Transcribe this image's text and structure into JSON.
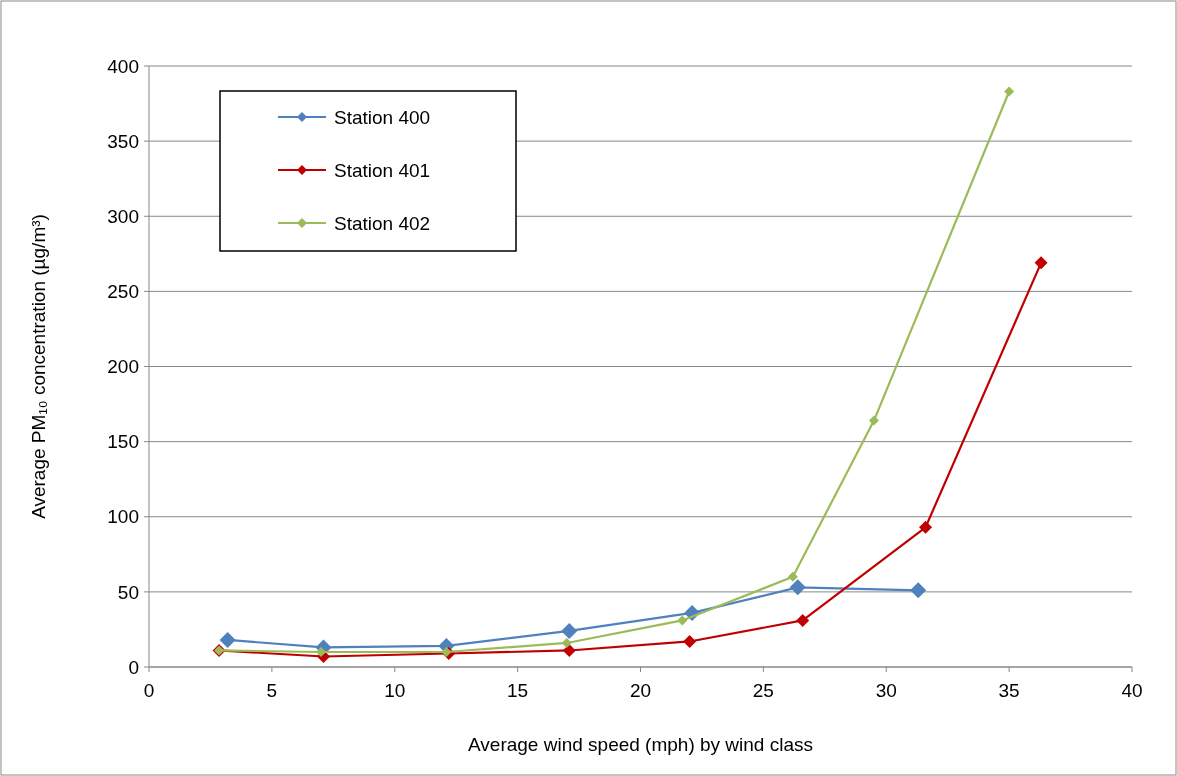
{
  "chart_data": {
    "type": "line",
    "xlabel": "Average wind speed (mph) by wind class",
    "ylabel": "Average PM₁₀ concentration (µg/m³)",
    "xlim": [
      0,
      40
    ],
    "xticks": [
      0,
      5,
      10,
      15,
      20,
      25,
      30,
      35,
      40
    ],
    "ylim": [
      0,
      400
    ],
    "yticks": [
      0,
      50,
      100,
      150,
      200,
      250,
      300,
      350,
      400
    ],
    "grid": "y",
    "legend": "top left",
    "marker": "diamond",
    "line_style": "solid",
    "series": [
      {
        "name": "Station 400",
        "color": "#4f81bd",
        "x": [
          3.2,
          7.1,
          12.1,
          17.1,
          22.1,
          26.4,
          31.3
        ],
        "values": [
          18,
          13,
          14,
          24,
          36,
          53,
          51
        ]
      },
      {
        "name": "Station 401",
        "color": "#c00000",
        "x": [
          2.85,
          7.1,
          12.2,
          17.1,
          22.0,
          26.6,
          31.6,
          36.3
        ],
        "values": [
          11,
          7,
          9,
          11,
          17,
          31,
          93,
          269
        ]
      },
      {
        "name": "Station 402",
        "color": "#9bbb59",
        "x": [
          2.85,
          7.0,
          12.1,
          17.0,
          21.7,
          26.2,
          29.5,
          35.0
        ],
        "values": [
          11,
          10,
          10,
          16,
          31,
          60,
          164,
          383
        ]
      }
    ]
  }
}
